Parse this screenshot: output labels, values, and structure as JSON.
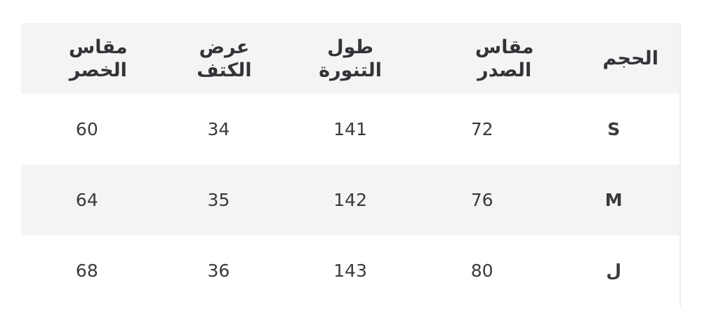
{
  "headers": [
    "الحجم",
    "مقاس الصدر",
    "طول التنورة",
    "عرض الكتف",
    "مقاس الخصر"
  ],
  "rows": [
    {
      "size": "S",
      "chest": "72",
      "skirt_length": "141",
      "shoulder": "34",
      "waist": "60"
    },
    {
      "size": "M",
      "chest": "76",
      "skirt_length": "142",
      "shoulder": "35",
      "waist": "64"
    },
    {
      "size": "ل",
      "chest": "80",
      "skirt_length": "143",
      "shoulder": "36",
      "waist": "68"
    }
  ]
}
